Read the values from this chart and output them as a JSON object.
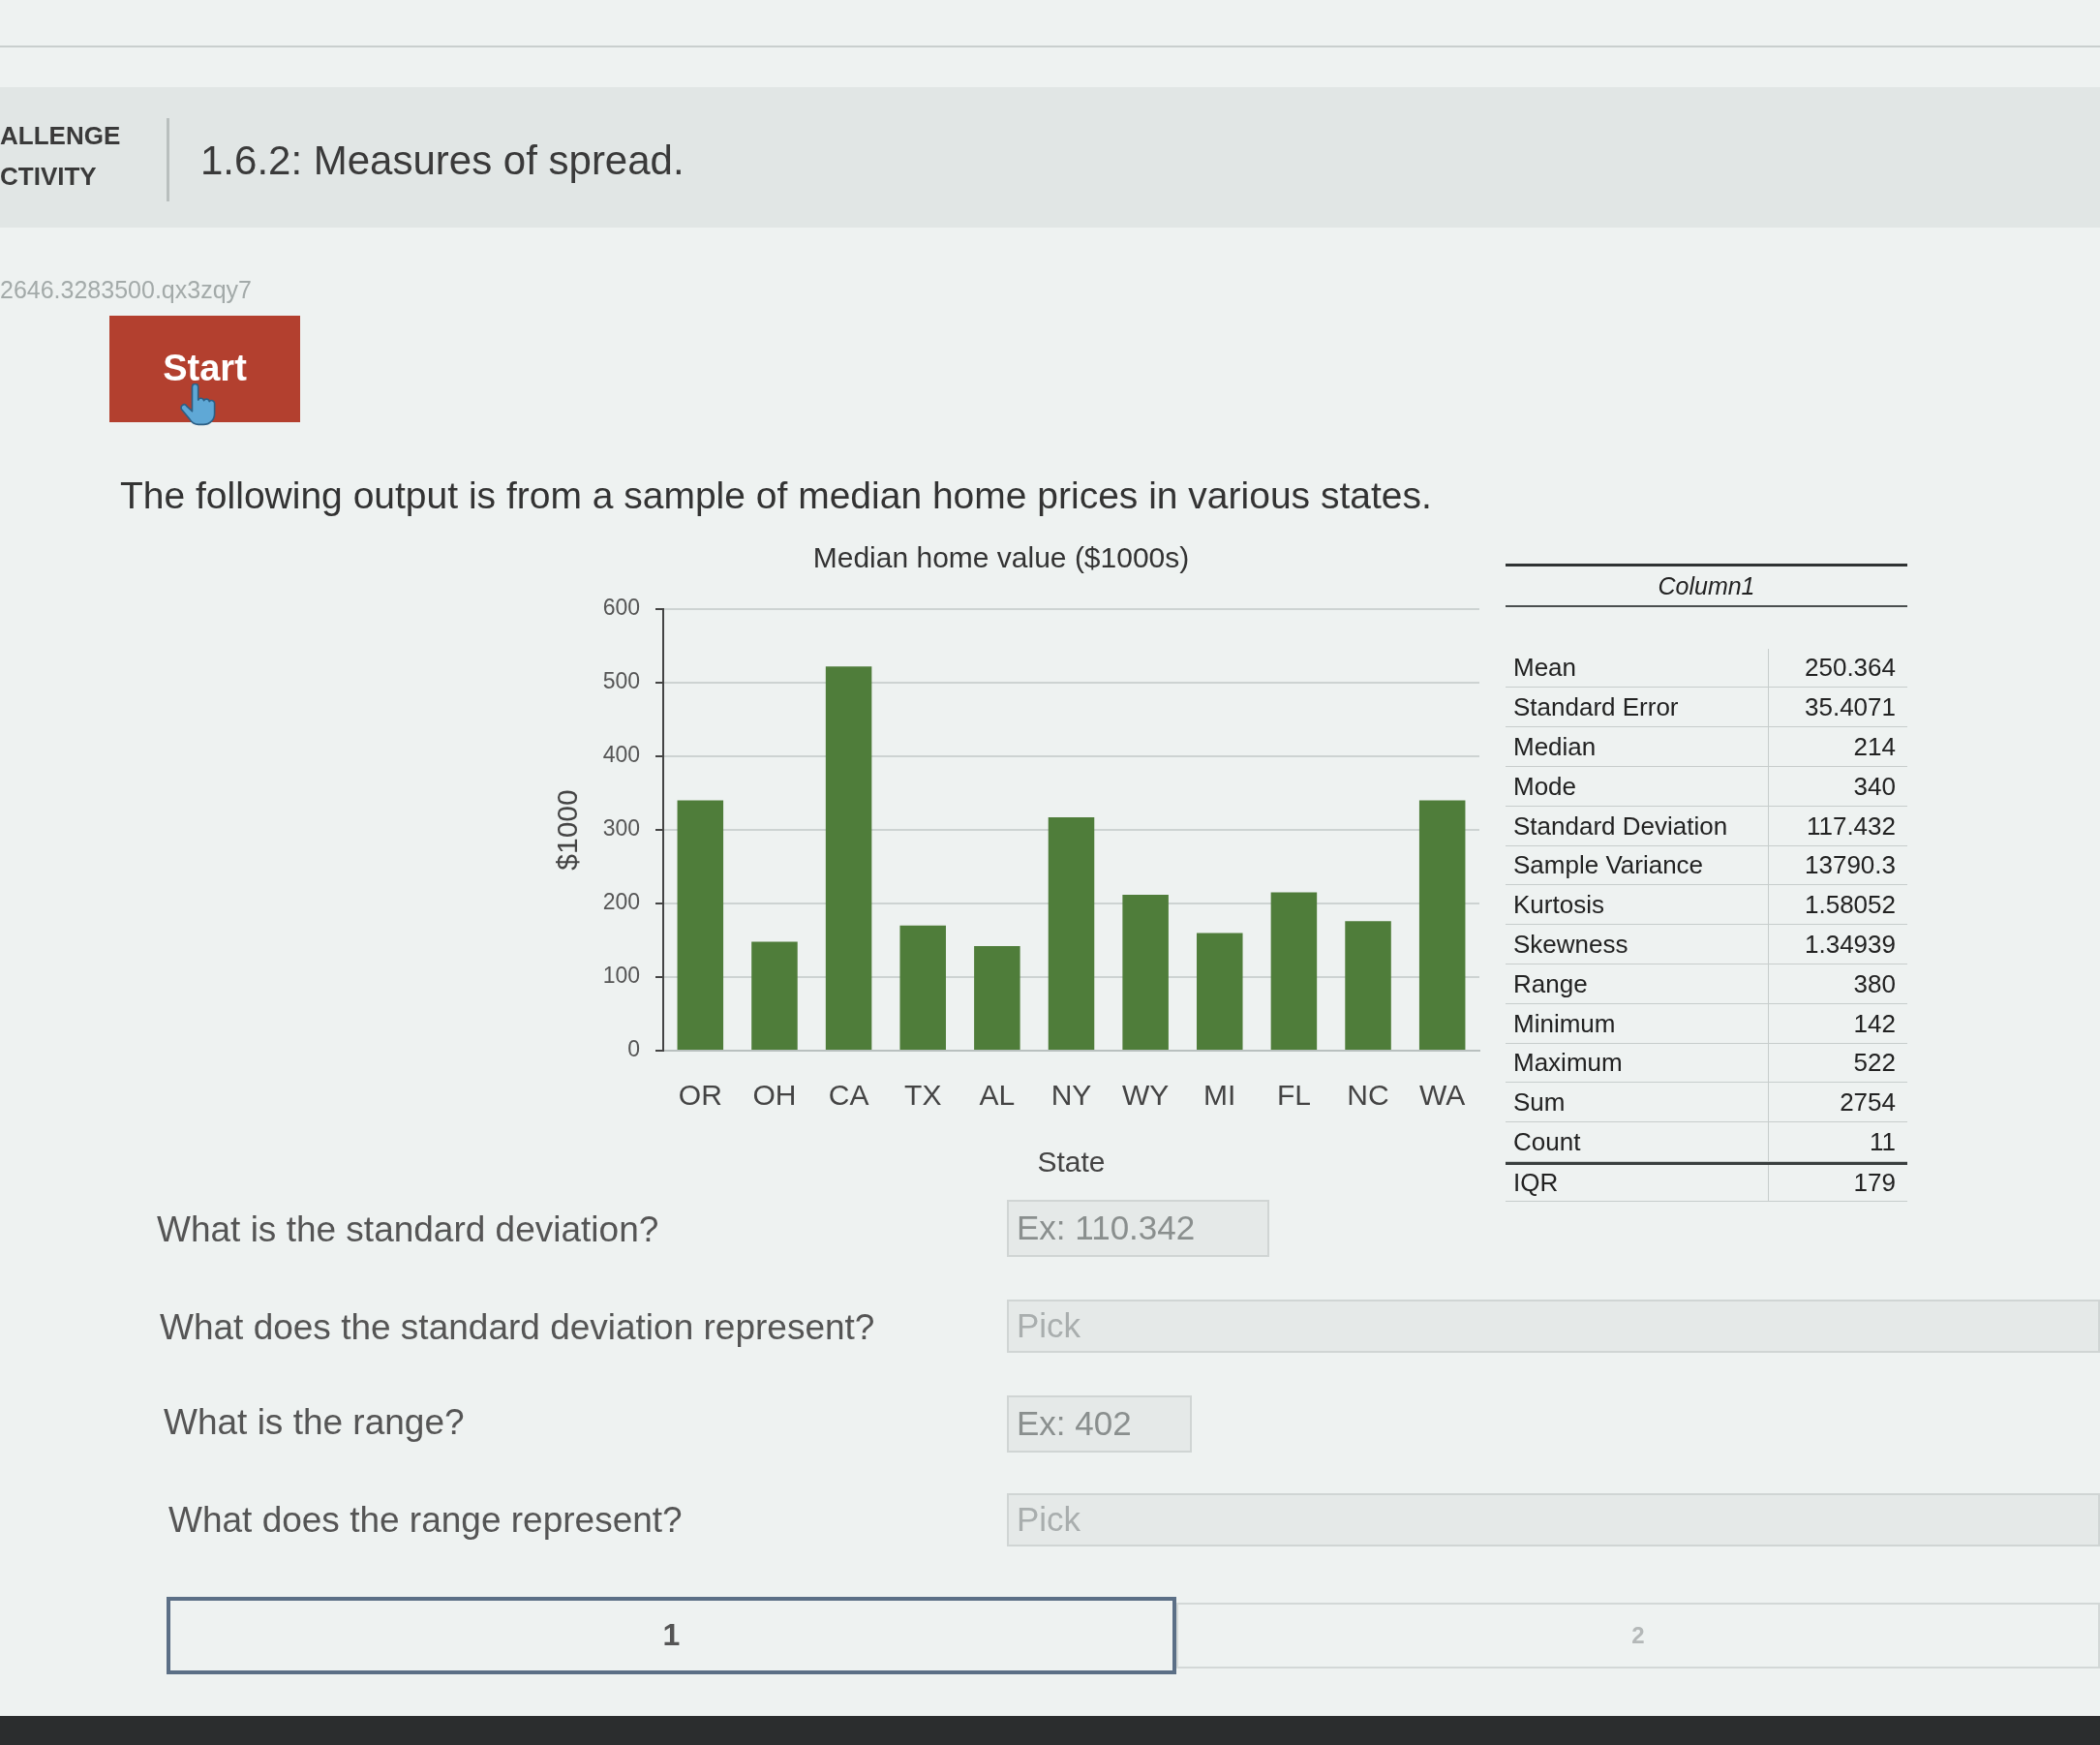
{
  "chart_data": [
    {
      "type": "other",
      "title": "1.6.2: Measures of spread.",
      "subtitle": "The following output is from a sample of median home prices in various states.",
      "annotations": [
        "ALLENGE",
        "CTIVITY",
        "2646.3283500.qx3zqy7",
        "Start"
      ]
    },
    {
      "type": "bar",
      "title": "Median home value ($1000s)",
      "xlabel": "State",
      "ylabel": "$1000",
      "categories": [
        "OR",
        "OH",
        "CA",
        "TX",
        "AL",
        "NY",
        "WY",
        "MI",
        "FL",
        "NC",
        "WA"
      ],
      "values": [
        340,
        148,
        522,
        170,
        142,
        317,
        212,
        160,
        215,
        176,
        340
      ],
      "color": "#4f7d3a",
      "ylim": [
        0,
        600
      ],
      "yticks": [
        0,
        100,
        200,
        300,
        400,
        500,
        600
      ],
      "grid": "y"
    },
    {
      "type": "other",
      "title": "Column1",
      "categories": [
        "Mean",
        "Standard Error",
        "Median",
        "Mode",
        "Standard Deviation",
        "Sample Variance",
        "Kurtosis",
        "Skewness",
        "Range",
        "Minimum",
        "Maximum",
        "Sum",
        "Count",
        "IQR"
      ],
      "values": [
        250.364,
        35.4071,
        214,
        340,
        117.432,
        13790.3,
        1.58052,
        1.34939,
        380,
        142,
        522,
        2754,
        11,
        179
      ],
      "data_labels": true
    },
    {
      "type": "other",
      "annotations": [
        "What is the standard deviation?",
        "Ex: 110.342",
        "What does the standard deviation represent?",
        "Pick",
        "What is the range?",
        "Ex: 402",
        "What does the range represent?",
        "Pick",
        "1",
        "2"
      ]
    }
  ]
}
